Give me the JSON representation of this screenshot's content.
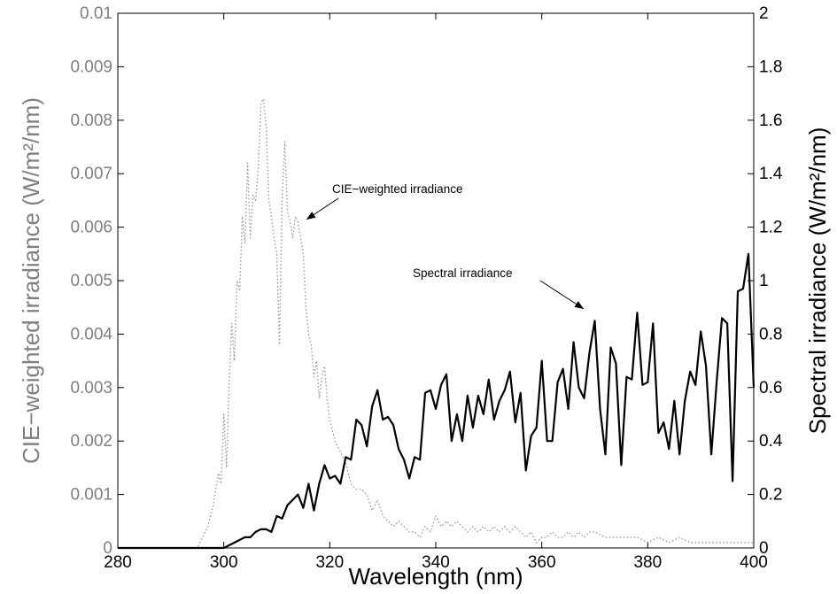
{
  "chart_data": {
    "type": "line",
    "xlabel": "Wavelength (nm)",
    "ylabel_left": "CIE−weighted irradiance (W/m²/nm)",
    "ylabel_right": "Spectral irradiance (W/m²/nm)",
    "xlim": [
      280,
      400
    ],
    "ylim_left": [
      0,
      0.01
    ],
    "ylim_right": [
      0,
      2
    ],
    "x_ticks": [
      "280",
      "300",
      "320",
      "340",
      "360",
      "380",
      "400"
    ],
    "y_left_ticks": [
      "0",
      "0.001",
      "0.002",
      "0.003",
      "0.004",
      "0.005",
      "0.006",
      "0.007",
      "0.008",
      "0.009",
      "0.01"
    ],
    "y_right_ticks": [
      "0",
      "0.2",
      "0.4",
      "0.6",
      "0.8",
      "1",
      "1.2",
      "1.4",
      "1.6",
      "1.8",
      "2"
    ],
    "grid": false,
    "series": [
      {
        "name": "CIE−weighted irradiance",
        "axis": "left",
        "style": "dotted",
        "color": "#9a9a9a",
        "x": [
          280,
          290,
          295,
          296,
          297,
          298,
          299,
          299.5,
          300,
          300.5,
          301,
          301.5,
          302,
          302.5,
          303,
          303.5,
          304,
          304.5,
          305,
          305.5,
          306,
          306.5,
          307,
          307.5,
          308,
          308.5,
          309,
          309.5,
          310,
          310.5,
          311,
          311.5,
          312,
          312.5,
          313,
          313.5,
          314,
          314.5,
          315,
          315.5,
          316,
          316.5,
          317,
          317.5,
          318,
          318.5,
          319,
          319.5,
          320,
          321,
          322,
          323,
          324,
          325,
          326,
          327,
          328,
          329,
          330,
          331,
          332,
          333,
          334,
          335,
          336,
          337,
          338,
          339,
          340,
          341,
          342,
          343,
          344,
          345,
          346,
          347,
          348,
          349,
          350,
          351,
          352,
          353,
          354,
          355,
          356,
          357,
          358,
          359,
          360,
          361,
          362,
          363,
          364,
          365,
          366,
          367,
          368,
          369,
          370,
          372,
          374,
          376,
          378,
          380,
          382,
          384,
          386,
          388,
          390,
          392,
          394,
          396,
          398,
          400
        ],
        "y": [
          0,
          0,
          0,
          0.0002,
          0.0004,
          0.0008,
          0.0014,
          0.0012,
          0.0025,
          0.0015,
          0.003,
          0.0042,
          0.0035,
          0.005,
          0.0048,
          0.0062,
          0.0057,
          0.0072,
          0.0058,
          0.0066,
          0.0065,
          0.0071,
          0.0083,
          0.0084,
          0.0079,
          0.0065,
          0.0062,
          0.0058,
          0.0055,
          0.0038,
          0.0065,
          0.0076,
          0.0063,
          0.0061,
          0.0058,
          0.0062,
          0.0061,
          0.0058,
          0.0055,
          0.0045,
          0.004,
          0.0038,
          0.0032,
          0.0035,
          0.0028,
          0.0032,
          0.0034,
          0.0028,
          0.0024,
          0.002,
          0.0018,
          0.0016,
          0.0012,
          0.0011,
          0.0011,
          0.001,
          0.0007,
          0.0009,
          0.0006,
          0.0005,
          0.0004,
          0.0005,
          0.0004,
          0.0003,
          0.0003,
          0.0002,
          0.0004,
          0.0003,
          0.0006,
          0.0004,
          0.0005,
          0.0004,
          0.0005,
          0.0004,
          0.0003,
          0.0004,
          0.0003,
          0.0004,
          0.0003,
          0.0004,
          0.0003,
          0.0004,
          0.0003,
          0.0004,
          0.0003,
          0.0002,
          0.0003,
          0.0001,
          0.0002,
          0.0002,
          0.0003,
          0.0002,
          0.0002,
          0.0003,
          0.0002,
          0.0003,
          0.0002,
          0.0003,
          0.0003,
          0.0002,
          0.0002,
          0.0002,
          0.0002,
          0.0001,
          0.0002,
          0.0001,
          0.0002,
          0.0001,
          0.0001,
          0.0001,
          0.0001,
          0.0001,
          0.0001,
          0.0001
        ]
      },
      {
        "name": "Spectral irradiance",
        "axis": "right",
        "style": "solid",
        "color": "#000000",
        "x": [
          280,
          290,
          300,
          301,
          302,
          303,
          304,
          305,
          306,
          307,
          308,
          309,
          310,
          311,
          312,
          313,
          314,
          315,
          316,
          317,
          318,
          319,
          320,
          321,
          322,
          323,
          324,
          325,
          326,
          327,
          328,
          329,
          330,
          331,
          332,
          333,
          334,
          335,
          336,
          337,
          338,
          339,
          340,
          341,
          342,
          343,
          344,
          345,
          346,
          347,
          348,
          349,
          350,
          351,
          352,
          353,
          354,
          355,
          356,
          357,
          358,
          359,
          360,
          361,
          362,
          363,
          364,
          365,
          366,
          367,
          368,
          369,
          370,
          371,
          372,
          373,
          374,
          375,
          376,
          377,
          378,
          379,
          380,
          381,
          382,
          383,
          384,
          385,
          386,
          387,
          388,
          389,
          390,
          391,
          392,
          393,
          394,
          395,
          396,
          397,
          398,
          399,
          400
        ],
        "y": [
          0,
          0,
          0,
          0.01,
          0.02,
          0.03,
          0.04,
          0.04,
          0.06,
          0.07,
          0.07,
          0.06,
          0.12,
          0.11,
          0.16,
          0.18,
          0.2,
          0.15,
          0.24,
          0.14,
          0.24,
          0.31,
          0.26,
          0.27,
          0.24,
          0.34,
          0.33,
          0.48,
          0.46,
          0.38,
          0.53,
          0.59,
          0.48,
          0.49,
          0.46,
          0.37,
          0.33,
          0.26,
          0.34,
          0.33,
          0.58,
          0.59,
          0.52,
          0.61,
          0.65,
          0.4,
          0.5,
          0.4,
          0.57,
          0.45,
          0.57,
          0.5,
          0.63,
          0.48,
          0.55,
          0.59,
          0.66,
          0.47,
          0.58,
          0.29,
          0.42,
          0.45,
          0.7,
          0.4,
          0.4,
          0.62,
          0.67,
          0.52,
          0.77,
          0.6,
          0.56,
          0.73,
          0.85,
          0.52,
          0.35,
          0.75,
          0.69,
          0.31,
          0.64,
          0.63,
          0.88,
          0.61,
          0.62,
          0.84,
          0.43,
          0.47,
          0.37,
          0.55,
          0.35,
          0.55,
          0.66,
          0.61,
          0.81,
          0.68,
          0.35,
          0.62,
          0.86,
          0.84,
          0.25,
          0.96,
          0.97,
          1.1,
          0.6
        ]
      }
    ],
    "annotations": [
      {
        "text": "CIE−weighted irradiance",
        "x": 317,
        "y": 1.23,
        "axis": "right"
      },
      {
        "text": "Spectral irradiance",
        "x": 370,
        "y": 0.86,
        "axis": "right"
      }
    ]
  }
}
